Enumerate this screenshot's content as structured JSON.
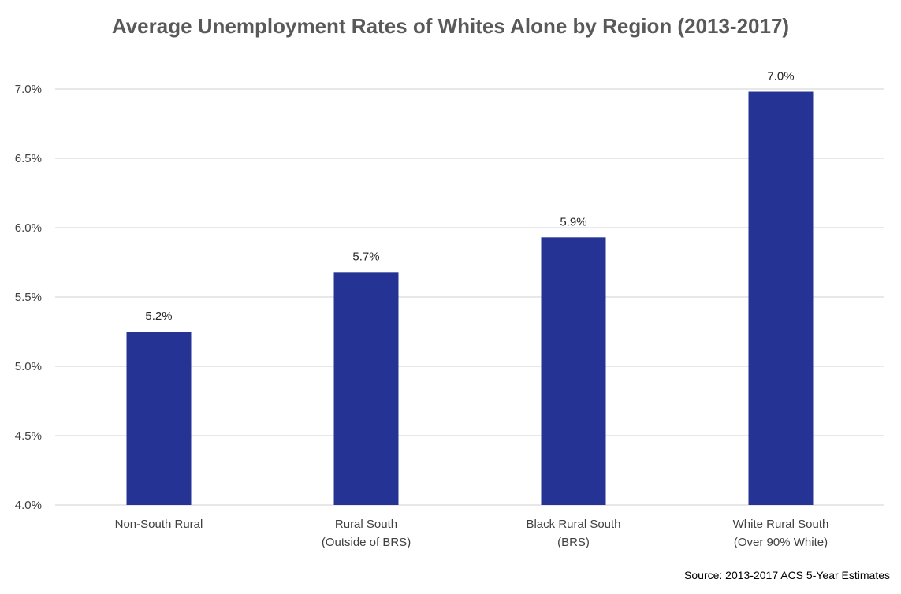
{
  "chart_data": {
    "type": "bar",
    "title": "Average Unemployment Rates of Whites Alone by Region (2013-2017)",
    "categories": [
      [
        "Non-South Rural"
      ],
      [
        "Rural South",
        "(Outside of BRS)"
      ],
      [
        "Black Rural South",
        "(BRS)"
      ],
      [
        "White Rural South",
        "(Over 90% White)"
      ]
    ],
    "values": [
      5.25,
      5.68,
      5.93,
      6.98
    ],
    "data_labels": [
      "5.2%",
      "5.7%",
      "5.9%",
      "7.0%"
    ],
    "ylim": [
      4.0,
      7.0
    ],
    "yticks": [
      4.0,
      4.5,
      5.0,
      5.5,
      6.0,
      6.5,
      7.0
    ],
    "ytick_labels": [
      "4.0%",
      "4.5%",
      "5.0%",
      "5.5%",
      "6.0%",
      "6.5%",
      "7.0%"
    ],
    "bar_color": "#253494",
    "grid": true,
    "xlabel": "",
    "ylabel": "",
    "source": "Source: 2013-2017 ACS 5-Year Estimates"
  }
}
